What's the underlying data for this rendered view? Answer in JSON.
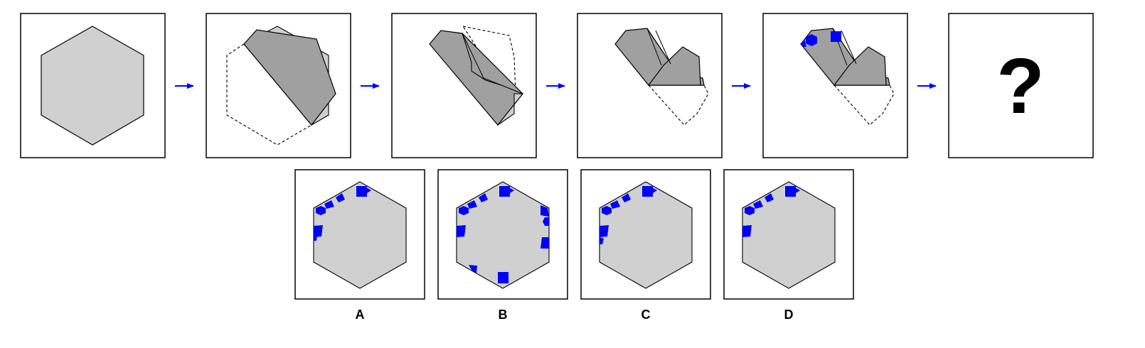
{
  "puzzle": {
    "sequence_placeholder": "?",
    "options": [
      {
        "label": "A"
      },
      {
        "label": "B"
      },
      {
        "label": "C"
      },
      {
        "label": "D"
      }
    ]
  },
  "colors": {
    "paper": "#d0d0d0",
    "folded": "#a0a0a0",
    "marker": "#0000ff",
    "arrow": "#0000ff",
    "outline": "#000000"
  }
}
